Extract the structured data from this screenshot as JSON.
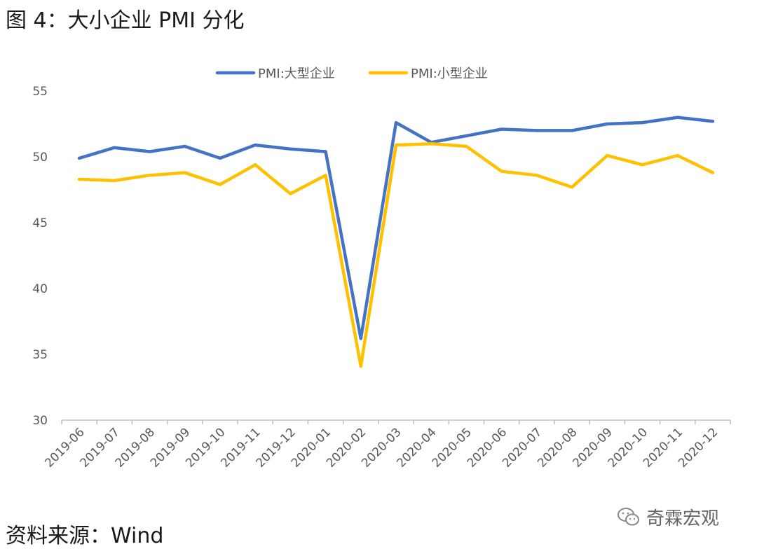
{
  "figure": {
    "title": "图 4：大小企业 PMI 分化",
    "source": "资料来源：Wind"
  },
  "watermark": {
    "text": "奇霖宏观",
    "icon": "wechat-icon"
  },
  "chart_data": {
    "type": "line",
    "title": "",
    "xlabel": "",
    "ylabel": "",
    "ylim": [
      30,
      55
    ],
    "yticks": [
      30,
      35,
      40,
      45,
      50,
      55
    ],
    "grid": false,
    "legend_position": "top-center",
    "categories": [
      "2019-06",
      "2019-07",
      "2019-08",
      "2019-09",
      "2019-10",
      "2019-11",
      "2019-12",
      "2020-01",
      "2020-02",
      "2020-03",
      "2020-04",
      "2020-05",
      "2020-06",
      "2020-07",
      "2020-08",
      "2020-09",
      "2020-10",
      "2020-11",
      "2020-12"
    ],
    "series": [
      {
        "name": "PMI:大型企业",
        "color": "#4472C4",
        "values": [
          49.9,
          50.7,
          50.4,
          50.8,
          49.9,
          50.9,
          50.6,
          50.4,
          36.2,
          52.6,
          51.1,
          51.6,
          52.1,
          52.0,
          52.0,
          52.5,
          52.6,
          53.0,
          52.7
        ]
      },
      {
        "name": "PMI:小型企业",
        "color": "#FFC000",
        "values": [
          48.3,
          48.2,
          48.6,
          48.8,
          47.9,
          49.4,
          47.2,
          48.6,
          34.1,
          50.9,
          51.0,
          50.8,
          48.9,
          48.6,
          47.7,
          50.1,
          49.4,
          50.1,
          48.8
        ]
      }
    ]
  }
}
